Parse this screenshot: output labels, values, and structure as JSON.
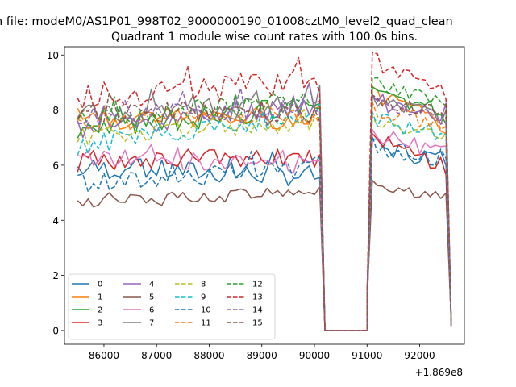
{
  "chart_data": {
    "type": "line",
    "suptitle": "n file: modeM0/AS1P01_998T02_9000000190_01008cztM0_level2_quad_clean",
    "title": "Quadrant 1 module wise count rates with 100.0s bins.",
    "xlabel": "",
    "ylabel": "",
    "offset_text": "+1.869e8",
    "xlim": [
      85250,
      92850
    ],
    "ylim": [
      -0.5,
      10.3
    ],
    "xticks": [
      86000,
      87000,
      88000,
      89000,
      90000,
      91000,
      92000
    ],
    "xtick_labels": [
      "86000",
      "87000",
      "88000",
      "89000",
      "90000",
      "91000",
      "92000"
    ],
    "yticks": [
      0,
      2,
      4,
      6,
      8,
      10
    ],
    "ytick_labels": [
      "0",
      "2",
      "4",
      "6",
      "8",
      "10"
    ],
    "legend_position": "lower-left",
    "legend_columns": 4,
    "segments": [
      {
        "x_start": 85500,
        "x_end": 90100,
        "step": 100
      },
      {
        "x_start": 90200,
        "x_end": 91100,
        "step": 100,
        "gap": true
      },
      {
        "x_start": 91100,
        "x_end": 92500,
        "step": 100
      }
    ],
    "end_point": {
      "x": 92600,
      "y_range": [
        0.15,
        0.35
      ]
    },
    "series": [
      {
        "name": "0",
        "color": "#1f77b4",
        "dashed": false,
        "first_level": [
          5.9,
          5.6
        ],
        "second_level": [
          6.7,
          6.2
        ],
        "amp": 0.25
      },
      {
        "name": "1",
        "color": "#ff7f0e",
        "dashed": false,
        "first_level": [
          7.7,
          7.7
        ],
        "second_level": [
          8.6,
          7.4
        ],
        "amp": 0.25
      },
      {
        "name": "2",
        "color": "#2ca02c",
        "dashed": false,
        "first_level": [
          7.2,
          8.2
        ],
        "second_level": [
          8.6,
          7.8
        ],
        "amp": 0.25
      },
      {
        "name": "3",
        "color": "#d62728",
        "dashed": false,
        "first_level": [
          6.1,
          6.3
        ],
        "second_level": [
          6.9,
          6.0
        ],
        "amp": 0.25
      },
      {
        "name": "4",
        "color": "#9467bd",
        "dashed": false,
        "first_level": [
          7.3,
          8.2
        ],
        "second_level": [
          8.3,
          7.9
        ],
        "amp": 0.25
      },
      {
        "name": "5",
        "color": "#8c564b",
        "dashed": false,
        "first_level": [
          4.6,
          5.1
        ],
        "second_level": [
          5.3,
          4.8
        ],
        "amp": 0.15
      },
      {
        "name": "6",
        "color": "#e377c2",
        "dashed": false,
        "first_level": [
          6.3,
          6.0
        ],
        "second_level": [
          7.1,
          6.5
        ],
        "amp": 0.2
      },
      {
        "name": "7",
        "color": "#7f7f7f",
        "dashed": false,
        "first_level": [
          7.8,
          8.2
        ],
        "second_level": [
          8.3,
          7.8
        ],
        "amp": 0.25
      },
      {
        "name": "8",
        "color": "#bcbd22",
        "dashed": true,
        "first_level": [
          7.0,
          7.5
        ],
        "second_level": [
          7.6,
          7.0
        ],
        "amp": 0.2
      },
      {
        "name": "9",
        "color": "#17becf",
        "dashed": true,
        "first_level": [
          6.7,
          7.9
        ],
        "second_level": [
          7.7,
          7.0
        ],
        "amp": 0.25
      },
      {
        "name": "10",
        "color": "#1f77b4",
        "dashed": true,
        "first_level": [
          5.3,
          5.9
        ],
        "second_level": [
          6.8,
          6.2
        ],
        "amp": 0.25
      },
      {
        "name": "11",
        "color": "#ff7f0e",
        "dashed": true,
        "first_level": [
          7.5,
          7.8
        ],
        "second_level": [
          8.1,
          7.4
        ],
        "amp": 0.2
      },
      {
        "name": "12",
        "color": "#2ca02c",
        "dashed": true,
        "first_level": [
          7.6,
          8.4
        ],
        "second_level": [
          8.9,
          8.2
        ],
        "amp": 0.25
      },
      {
        "name": "13",
        "color": "#d62728",
        "dashed": true,
        "first_level": [
          8.5,
          9.0
        ],
        "second_level": [
          9.8,
          8.5
        ],
        "amp": 0.3
      },
      {
        "name": "14",
        "color": "#9467bd",
        "dashed": true,
        "first_level": [
          7.7,
          8.2
        ],
        "second_level": [
          8.2,
          7.7
        ],
        "amp": 0.25
      },
      {
        "name": "15",
        "color": "#8c564b",
        "dashed": true,
        "first_level": [
          8.0,
          7.8
        ],
        "second_level": [
          8.3,
          7.9
        ],
        "amp": 0.25
      }
    ]
  }
}
